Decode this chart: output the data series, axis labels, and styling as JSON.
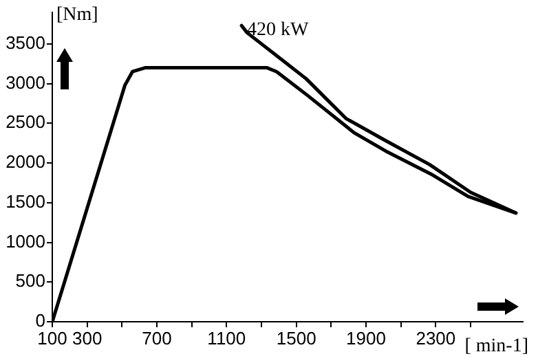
{
  "chart_data": {
    "type": "line",
    "xlabel": "[ min-1]",
    "ylabel": "[Nm]",
    "xlim": [
      100,
      2800
    ],
    "ylim": [
      0,
      3900
    ],
    "xticks": [
      100,
      300,
      {
        "value": 500,
        "label": null
      },
      700,
      {
        "value": 900,
        "label": null
      },
      1100,
      {
        "value": 1300,
        "label": null
      },
      1500,
      {
        "value": 1700,
        "label": null
      },
      1900,
      {
        "value": 2100,
        "label": null
      },
      2300,
      {
        "value": 2500,
        "label": null
      }
    ],
    "yticks": [
      0,
      500,
      1000,
      1500,
      2000,
      2500,
      3000,
      3500
    ],
    "grid": false,
    "legend": false,
    "marker": "none",
    "line_style": "solid",
    "series": [
      {
        "color": "#000000",
        "x": [
          100,
          517,
          560,
          635,
          1330,
          1387,
          1565,
          1832,
          2013,
          2273,
          2485,
          2760
        ],
        "values": [
          0,
          2980,
          3150,
          3200,
          3200,
          3150,
          2850,
          2380,
          2150,
          1860,
          1580,
          1370
        ]
      },
      {
        "name": "420 kW",
        "color": "#000000",
        "x": [
          1186,
          1218,
          1400,
          1557,
          1785,
          2005,
          2265,
          2500,
          2760
        ],
        "values": [
          3730,
          3640,
          3330,
          3060,
          2560,
          2290,
          1980,
          1630,
          1370
        ]
      }
    ]
  }
}
